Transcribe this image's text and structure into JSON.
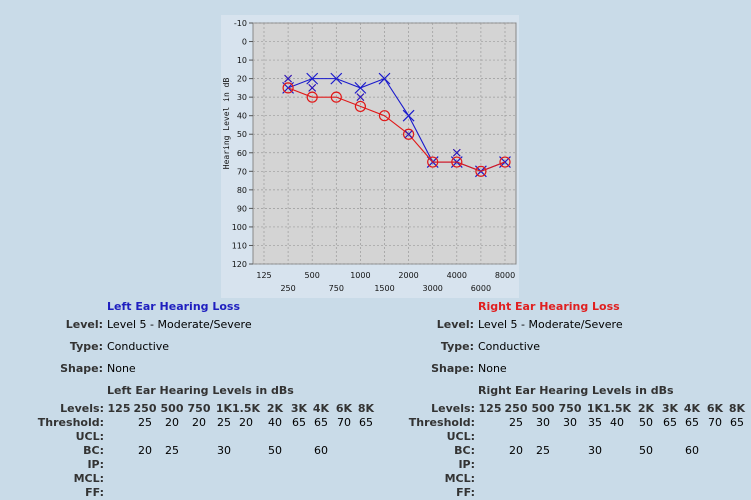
{
  "chart_data": {
    "type": "line",
    "title": "",
    "ylabel": "Hearing Level in dB",
    "xlabel": "",
    "ylim": [
      -10,
      120
    ],
    "y_reversed": true,
    "y_ticks": [
      "-10",
      "0",
      "10",
      "20",
      "30",
      "40",
      "50",
      "60",
      "70",
      "80",
      "90",
      "100",
      "110",
      "120"
    ],
    "x_categories": [
      "125",
      "250",
      "500",
      "750",
      "1000",
      "1500",
      "2000",
      "3000",
      "4000",
      "6000",
      "8000"
    ],
    "x_tick_labels": [
      "125",
      "250",
      "500",
      "750",
      "1000",
      "1500",
      "2000",
      "3000",
      "4000",
      "6000",
      "8000"
    ],
    "grid": true,
    "series": [
      {
        "ear": "left",
        "color": "#1a1acc",
        "marker": "x",
        "x": [
          "250",
          "500",
          "750",
          "1000",
          "1500",
          "2000",
          "3000",
          "4000",
          "6000",
          "8000"
        ],
        "values": [
          25,
          20,
          20,
          25,
          20,
          40,
          65,
          65,
          70,
          65
        ]
      },
      {
        "ear": "right",
        "color": "#e01818",
        "marker": "o",
        "x": [
          "250",
          "500",
          "750",
          "1000",
          "1500",
          "2000",
          "3000",
          "4000",
          "6000",
          "8000"
        ],
        "values": [
          25,
          30,
          30,
          35,
          40,
          50,
          65,
          65,
          70,
          65
        ]
      },
      {
        "ear": "left-bc",
        "color": "#e01818",
        "marker": "x-small",
        "x": [
          "250",
          "500",
          "1000",
          "2000",
          "4000"
        ],
        "values": [
          20,
          25,
          30,
          50,
          60
        ]
      },
      {
        "ear": "right-bc",
        "color": "#1a1acc",
        "marker": "x-small",
        "x": [
          "250",
          "500",
          "1000",
          "2000",
          "4000"
        ],
        "values": [
          20,
          25,
          30,
          50,
          60
        ]
      }
    ]
  },
  "left": {
    "title": "Left Ear Hearing Loss",
    "level_label": "Level:",
    "level_value": "Level 5 - Moderate/Severe",
    "type_label": "Type:",
    "type_value": "Conductive",
    "shape_label": "Shape:",
    "shape_value": "None",
    "levels_title": "Left Ear Hearing Levels in dBs",
    "rows": [
      {
        "label": "Levels:",
        "header": true,
        "cells": [
          "125",
          "250",
          "500",
          "750",
          "1K",
          "1.5K",
          "2K",
          "3K",
          "4K",
          "6K",
          "8K"
        ]
      },
      {
        "label": "Threshold:",
        "cells": [
          "",
          "25",
          "20",
          "20",
          "25",
          "20",
          "40",
          "65",
          "65",
          "70",
          "65"
        ]
      },
      {
        "label": "UCL:",
        "cells": [
          "",
          "",
          "",
          "",
          "",
          "",
          "",
          "",
          "",
          "",
          ""
        ]
      },
      {
        "label": "BC:",
        "cells": [
          "",
          "20",
          "25",
          "",
          "30",
          "",
          "50",
          "",
          "60",
          "",
          ""
        ]
      },
      {
        "label": "IP:",
        "cells": [
          "",
          "",
          "",
          "",
          "",
          "",
          "",
          "",
          "",
          "",
          ""
        ]
      },
      {
        "label": "MCL:",
        "cells": [
          "",
          "",
          "",
          "",
          "",
          "",
          "",
          "",
          "",
          "",
          ""
        ]
      },
      {
        "label": "FF:",
        "cells": [
          "",
          "",
          "",
          "",
          "",
          "",
          "",
          "",
          "",
          "",
          ""
        ]
      }
    ]
  },
  "right": {
    "title": "Right Ear Hearing Loss",
    "level_label": "Level:",
    "level_value": "Level 5 - Moderate/Severe",
    "type_label": "Type:",
    "type_value": "Conductive",
    "shape_label": "Shape:",
    "shape_value": "None",
    "levels_title": "Right Ear Hearing Levels in dBs",
    "rows": [
      {
        "label": "Levels:",
        "header": true,
        "cells": [
          "125",
          "250",
          "500",
          "750",
          "1K",
          "1.5K",
          "2K",
          "3K",
          "4K",
          "6K",
          "8K"
        ]
      },
      {
        "label": "Threshold:",
        "cells": [
          "",
          "25",
          "30",
          "30",
          "35",
          "40",
          "50",
          "65",
          "65",
          "70",
          "65"
        ]
      },
      {
        "label": "UCL:",
        "cells": [
          "",
          "",
          "",
          "",
          "",
          "",
          "",
          "",
          "",
          "",
          ""
        ]
      },
      {
        "label": "BC:",
        "cells": [
          "",
          "20",
          "25",
          "",
          "30",
          "",
          "50",
          "",
          "60",
          "",
          ""
        ]
      },
      {
        "label": "IP:",
        "cells": [
          "",
          "",
          "",
          "",
          "",
          "",
          "",
          "",
          "",
          "",
          ""
        ]
      },
      {
        "label": "MCL:",
        "cells": [
          "",
          "",
          "",
          "",
          "",
          "",
          "",
          "",
          "",
          "",
          ""
        ]
      },
      {
        "label": "FF:",
        "cells": [
          "",
          "",
          "",
          "",
          "",
          "",
          "",
          "",
          "",
          "",
          ""
        ]
      }
    ]
  }
}
